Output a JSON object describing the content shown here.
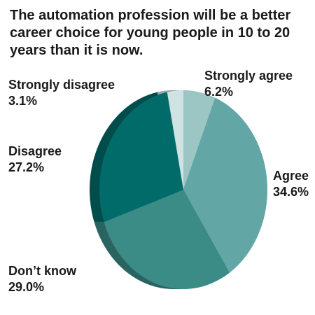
{
  "chart_data": {
    "type": "pie",
    "title": "The automation profession will be a better career choice for young people in 10 to 20 years than it is now.",
    "slices": [
      {
        "label": "Strongly agree",
        "value": 6.2,
        "display": "6.2%",
        "color": "#9cc6c4"
      },
      {
        "label": "Agree",
        "value": 34.6,
        "display": "34.6%",
        "color": "#62a7a5"
      },
      {
        "label": "Don’t know",
        "value": 29.0,
        "display": "29.0%",
        "color": "#3b8b87"
      },
      {
        "label": "Disagree",
        "value": 27.2,
        "display": "27.2%",
        "color": "#006b69"
      },
      {
        "label": "Strongly disagree",
        "value": 3.1,
        "display": "3.1%",
        "color": "#cfe4e2"
      }
    ],
    "start": "top",
    "direction": "clockwise",
    "style": "3d-tilted"
  }
}
